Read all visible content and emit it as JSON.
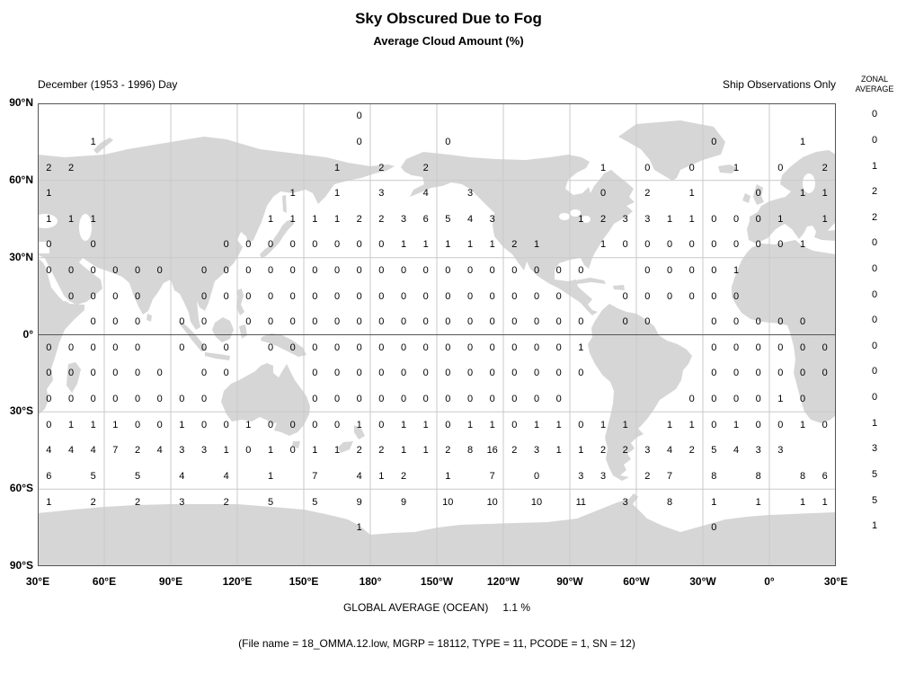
{
  "header": {
    "title": "Sky Obscured Due to Fog",
    "subtitle": "Average Cloud Amount (%)",
    "period_label": "December (1953 - 1996) Day",
    "obs_label": "Ship Observations Only",
    "zonal_header_line1": "ZONAL",
    "zonal_header_line2": "AVERAGE"
  },
  "footer": {
    "global_average_label": "GLOBAL AVERAGE (OCEAN)",
    "global_average_value": "1.1 %",
    "file_info": "(File name = 18_OMMA.12.low, MGRP = 18112, TYPE = 11, PCODE = 1, SN = 12)"
  },
  "colors": {
    "land": "#d6d6d6",
    "grid": "#c9c9c9",
    "axis": "#555555",
    "text": "#000000"
  },
  "chart_data": {
    "type": "heatmap",
    "title": "Sky Obscured Due to Fog",
    "subtitle": "Average Cloud Amount (%)",
    "period_label": "December (1953 - 1996) Day",
    "source_label": "Ship Observations Only",
    "x_tick_labels": [
      "30°E",
      "60°E",
      "90°E",
      "120°E",
      "150°E",
      "180°",
      "150°W",
      "120°W",
      "90°W",
      "60°W",
      "30°W",
      "0°",
      "30°E"
    ],
    "y_tick_labels": [
      "90°N",
      "60°N",
      "30°N",
      "0°",
      "30°S",
      "60°S",
      "90°S"
    ],
    "grid": {
      "rows": 18,
      "cols": 36,
      "cell_deg": 10,
      "lon_start_deg_east": 30
    },
    "lat_row_centers_deg": [
      85,
      75,
      65,
      55,
      45,
      35,
      25,
      15,
      5,
      -5,
      -15,
      -25,
      -35,
      -45,
      -55,
      -65,
      -75,
      -85
    ],
    "values": [
      [
        null,
        null,
        null,
        null,
        null,
        null,
        null,
        null,
        null,
        null,
        null,
        null,
        null,
        null,
        0,
        null,
        null,
        null,
        null,
        null,
        null,
        null,
        null,
        null,
        null,
        null,
        null,
        null,
        null,
        null,
        null,
        null,
        null,
        null,
        null,
        null
      ],
      [
        null,
        null,
        1,
        null,
        null,
        null,
        null,
        null,
        null,
        null,
        null,
        null,
        null,
        null,
        0,
        null,
        null,
        null,
        0,
        null,
        null,
        null,
        null,
        null,
        null,
        null,
        null,
        null,
        null,
        null,
        0,
        null,
        null,
        null,
        1,
        null
      ],
      [
        2,
        2,
        null,
        null,
        null,
        null,
        null,
        null,
        null,
        null,
        null,
        null,
        null,
        1,
        null,
        2,
        null,
        2,
        null,
        null,
        null,
        null,
        null,
        null,
        null,
        1,
        null,
        0,
        null,
        0,
        null,
        1,
        null,
        0,
        null,
        2
      ],
      [
        1,
        null,
        null,
        null,
        null,
        null,
        null,
        null,
        null,
        null,
        null,
        1,
        null,
        1,
        null,
        3,
        null,
        4,
        null,
        3,
        null,
        null,
        null,
        null,
        null,
        0,
        null,
        2,
        null,
        1,
        null,
        null,
        0,
        null,
        1,
        1
      ],
      [
        1,
        1,
        1,
        null,
        null,
        null,
        null,
        null,
        null,
        null,
        1,
        1,
        1,
        1,
        2,
        2,
        3,
        6,
        5,
        4,
        3,
        null,
        null,
        null,
        1,
        2,
        3,
        3,
        1,
        1,
        0,
        0,
        0,
        1,
        null,
        1
      ],
      [
        0,
        null,
        0,
        null,
        null,
        null,
        null,
        null,
        0,
        0,
        0,
        0,
        0,
        0,
        0,
        0,
        1,
        1,
        1,
        1,
        1,
        2,
        1,
        null,
        null,
        1,
        0,
        0,
        0,
        0,
        0,
        0,
        0,
        0,
        1,
        null
      ],
      [
        0,
        0,
        0,
        0,
        0,
        0,
        null,
        0,
        0,
        0,
        0,
        0,
        0,
        0,
        0,
        0,
        0,
        0,
        0,
        0,
        0,
        0,
        0,
        0,
        0,
        null,
        null,
        0,
        0,
        0,
        0,
        1,
        null,
        null,
        null,
        null
      ],
      [
        null,
        0,
        0,
        0,
        0,
        null,
        null,
        0,
        0,
        0,
        0,
        0,
        0,
        0,
        0,
        0,
        0,
        0,
        0,
        0,
        0,
        0,
        0,
        0,
        null,
        null,
        0,
        0,
        0,
        0,
        0,
        0,
        null,
        null,
        null,
        null
      ],
      [
        null,
        null,
        0,
        0,
        0,
        null,
        0,
        0,
        null,
        0,
        0,
        0,
        0,
        0,
        0,
        0,
        0,
        0,
        0,
        0,
        0,
        0,
        0,
        0,
        0,
        null,
        0,
        0,
        null,
        null,
        0,
        0,
        0,
        0,
        0,
        null
      ],
      [
        0,
        0,
        0,
        0,
        0,
        null,
        0,
        0,
        0,
        null,
        0,
        0,
        0,
        0,
        0,
        0,
        0,
        0,
        0,
        0,
        0,
        0,
        0,
        0,
        1,
        null,
        null,
        null,
        null,
        null,
        0,
        0,
        0,
        0,
        0,
        0
      ],
      [
        0,
        0,
        0,
        0,
        0,
        0,
        null,
        0,
        0,
        null,
        null,
        null,
        0,
        0,
        0,
        0,
        0,
        0,
        0,
        0,
        0,
        0,
        0,
        0,
        0,
        null,
        null,
        null,
        null,
        null,
        0,
        0,
        0,
        0,
        0,
        0
      ],
      [
        0,
        0,
        0,
        0,
        0,
        0,
        0,
        0,
        null,
        null,
        null,
        null,
        0,
        0,
        0,
        0,
        0,
        0,
        0,
        0,
        0,
        0,
        0,
        0,
        null,
        null,
        null,
        null,
        null,
        0,
        0,
        0,
        0,
        1,
        0,
        null
      ],
      [
        0,
        1,
        1,
        1,
        0,
        0,
        1,
        0,
        0,
        1,
        0,
        0,
        0,
        0,
        1,
        0,
        1,
        1,
        0,
        1,
        1,
        0,
        1,
        1,
        0,
        1,
        1,
        null,
        1,
        1,
        0,
        1,
        0,
        0,
        1,
        0
      ],
      [
        4,
        4,
        4,
        7,
        2,
        4,
        3,
        3,
        1,
        0,
        1,
        0,
        1,
        1,
        2,
        2,
        1,
        1,
        2,
        8,
        16,
        2,
        3,
        1,
        1,
        2,
        2,
        3,
        4,
        2,
        5,
        4,
        3,
        3,
        null,
        null
      ],
      [
        6,
        null,
        5,
        null,
        5,
        null,
        4,
        null,
        4,
        null,
        1,
        null,
        7,
        null,
        4,
        1,
        2,
        null,
        1,
        null,
        7,
        null,
        0,
        null,
        3,
        3,
        null,
        2,
        7,
        null,
        8,
        null,
        8,
        null,
        8,
        6
      ],
      [
        1,
        null,
        2,
        null,
        2,
        null,
        3,
        null,
        2,
        null,
        5,
        null,
        5,
        null,
        9,
        null,
        9,
        null,
        10,
        null,
        10,
        null,
        10,
        null,
        11,
        null,
        3,
        null,
        8,
        null,
        1,
        null,
        1,
        null,
        1,
        1
      ],
      [
        null,
        null,
        null,
        null,
        null,
        null,
        null,
        null,
        null,
        null,
        null,
        null,
        null,
        null,
        1,
        null,
        null,
        null,
        null,
        null,
        null,
        null,
        null,
        null,
        null,
        null,
        null,
        null,
        null,
        null,
        0,
        null,
        null,
        null,
        null,
        null
      ],
      [
        null,
        null,
        null,
        null,
        null,
        null,
        null,
        null,
        null,
        null,
        null,
        null,
        null,
        null,
        null,
        null,
        null,
        null,
        null,
        null,
        null,
        null,
        null,
        null,
        null,
        null,
        null,
        null,
        null,
        null,
        null,
        null,
        null,
        null,
        null,
        null
      ]
    ],
    "zonal_averages": [
      0,
      0,
      1,
      2,
      2,
      0,
      0,
      0,
      0,
      0,
      0,
      0,
      1,
      3,
      5,
      5,
      1,
      null
    ],
    "global_average_label": "GLOBAL AVERAGE (OCEAN)",
    "global_average_value": "1.1 %",
    "file_info": "(File name = 18_OMMA.12.low, MGRP = 18112, TYPE = 11, PCODE = 1, SN = 12)",
    "legend_position": "none",
    "grid_on": true
  }
}
